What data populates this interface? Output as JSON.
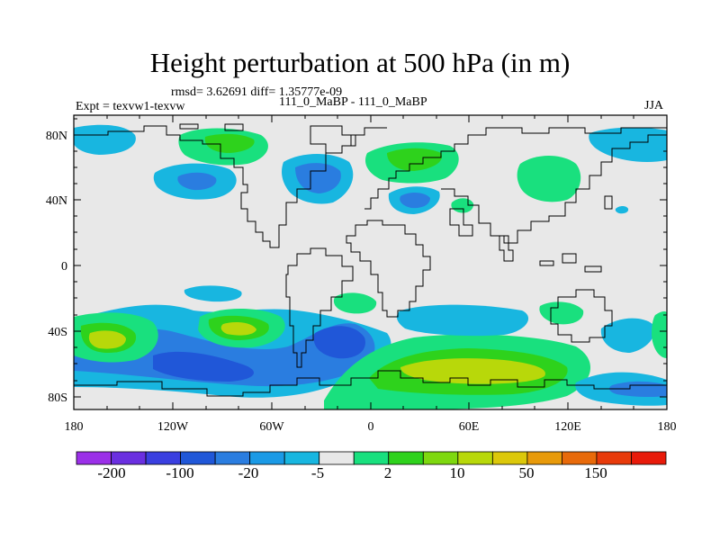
{
  "title": "Height perturbation at 500 hPa (in m)",
  "stats": "rmsd= 3.62691 diff= 1.35777e-09",
  "experiment": "Expt = texvw1-texvw",
  "comparison": "111_0_MaBP - 111_0_MaBP",
  "season": "JJA",
  "axes": {
    "lat_labels": [
      "80N",
      "40N",
      "0",
      "40S",
      "80S"
    ],
    "lon_labels": [
      "180",
      "120W",
      "60W",
      "0",
      "60E",
      "120E",
      "180"
    ]
  },
  "colorbar": {
    "labels": [
      "-200",
      "-100",
      "-20",
      "-5",
      "2",
      "10",
      "50",
      "150"
    ],
    "colors": [
      "#9b30e8",
      "#6a2fe0",
      "#3a3fe0",
      "#2057d8",
      "#2a7de0",
      "#1a9ae6",
      "#18b6e0",
      "#e8e8e8",
      "#19e07e",
      "#2ed21c",
      "#7ed80f",
      "#b8d80a",
      "#dcc80a",
      "#e89a0a",
      "#e86a0a",
      "#e83a0a",
      "#e81a0a"
    ]
  },
  "chart_data": {
    "type": "contour-map",
    "title": "Height perturbation at 500 hPa (in m)",
    "x_range": [
      -180,
      180
    ],
    "y_range": [
      -90,
      90
    ],
    "x_ticks": [
      -180,
      -120,
      -60,
      0,
      60,
      120,
      180
    ],
    "y_ticks": [
      80,
      40,
      0,
      -40,
      -80
    ],
    "levels": [
      -200,
      -100,
      -20,
      -5,
      2,
      10,
      50,
      150
    ],
    "fill_colors": {
      "weak_neg": "#18b6e0",
      "mid_neg": "#2a7de0",
      "strong_neg": "#2057d8",
      "weak_pos": "#19e07e",
      "mid_pos": "#2ed21c",
      "strong_pos": "#b8d80a",
      "background": "#e8e8e8"
    },
    "regions": [
      {
        "name": "sh-jet-positive-west",
        "sign": "positive",
        "lon": -165,
        "lat": -50,
        "peak_level": 50
      },
      {
        "name": "sh-jet-positive-mid",
        "sign": "positive",
        "lon": -90,
        "lat": -40,
        "peak_level": 50
      },
      {
        "name": "sh-trough-pacific",
        "sign": "negative",
        "lon": -100,
        "lat": -65,
        "peak_level": -20
      },
      {
        "name": "sh-trough-atlantic",
        "sign": "negative",
        "lon": -20,
        "lat": -45,
        "peak_level": -20
      },
      {
        "name": "sh-ridge-indian",
        "sign": "positive",
        "lon": 70,
        "lat": -65,
        "peak_level": 50
      },
      {
        "name": "nh-ridge-europe",
        "sign": "positive",
        "lon": 10,
        "lat": 68,
        "peak_level": 10
      },
      {
        "name": "nh-ridge-asia",
        "sign": "positive",
        "lon": 90,
        "lat": 55,
        "peak_level": 2
      },
      {
        "name": "nh-trough-na",
        "sign": "negative",
        "lon": -120,
        "lat": 60,
        "peak_level": -5
      },
      {
        "name": "nh-ridge-na",
        "sign": "positive",
        "lon": -95,
        "lat": 75,
        "peak_level": 10
      }
    ]
  }
}
